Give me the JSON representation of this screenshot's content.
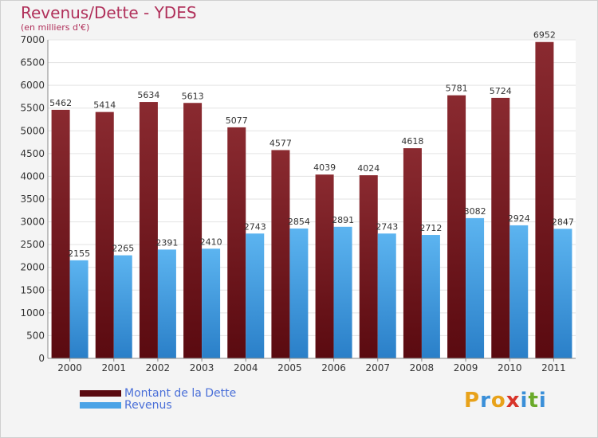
{
  "chart_data": {
    "type": "bar",
    "title": "Revenus/Dette - YDES",
    "subtitle": "(en milliers d'€)",
    "categories": [
      "2000",
      "2001",
      "2002",
      "2003",
      "2004",
      "2005",
      "2006",
      "2007",
      "2008",
      "2009",
      "2010",
      "2011"
    ],
    "series": [
      {
        "name": "Montant de la Dette",
        "color": "#7a1b24",
        "values": [
          5462,
          5414,
          5634,
          5613,
          5077,
          4577,
          4039,
          4024,
          4618,
          5781,
          5724,
          6952
        ]
      },
      {
        "name": "Revenus",
        "color": "#4aa3e6",
        "values": [
          2155,
          2265,
          2391,
          2410,
          2743,
          2854,
          2891,
          2743,
          2712,
          3082,
          2924,
          2847
        ]
      }
    ],
    "ylim": [
      0,
      7000
    ],
    "yticks": [
      0,
      500,
      1000,
      1500,
      2000,
      2500,
      3000,
      3500,
      4000,
      4500,
      5000,
      5500,
      6000,
      6500,
      7000
    ],
    "grid": true,
    "legend_position": "bottom-left"
  },
  "logo": {
    "letters": [
      "P",
      "r",
      "o",
      "x",
      "i",
      "t",
      "i"
    ],
    "colors": [
      "#e8a21a",
      "#3a8fd8",
      "#e8a21a",
      "#d8342a",
      "#3a8fd8",
      "#6aaa2a",
      "#3a8fd8"
    ]
  }
}
